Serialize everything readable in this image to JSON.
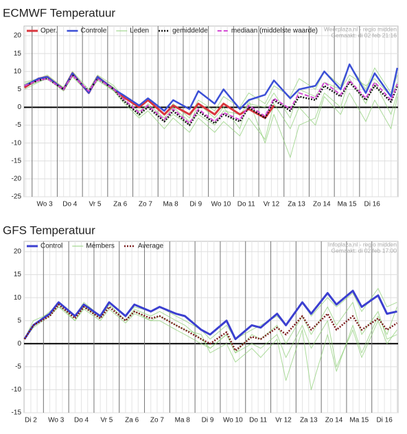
{
  "chart_data": [
    {
      "type": "line",
      "title": "ECMWF Temperatuur",
      "source": [
        "Weerplaza.nl - regio midden",
        "Gemaakt: di 02 feb 21:16"
      ],
      "xlim": [
        0.68,
        15.53
      ],
      "xticks": [
        {
          "value": 1.5,
          "label": "Wo 3"
        },
        {
          "value": 2.5,
          "label": "Do 4"
        },
        {
          "value": 3.5,
          "label": "Vr 5"
        },
        {
          "value": 4.5,
          "label": "Za 6"
        },
        {
          "value": 5.5,
          "label": "Zo 7"
        },
        {
          "value": 6.5,
          "label": "Ma 8"
        },
        {
          "value": 7.5,
          "label": "Di 9"
        },
        {
          "value": 8.5,
          "label": "Wo 10"
        },
        {
          "value": 9.5,
          "label": "Do 11"
        },
        {
          "value": 10.5,
          "label": "Vr 12"
        },
        {
          "value": 11.5,
          "label": "Za 13"
        },
        {
          "value": 12.5,
          "label": "Zo 14"
        },
        {
          "value": 13.5,
          "label": "Ma 15"
        },
        {
          "value": 14.5,
          "label": "Di 16"
        }
      ],
      "ylim": [
        -25,
        20
      ],
      "yticks": [
        20,
        15,
        10,
        5,
        0,
        -5,
        -10,
        -15,
        -20,
        -25
      ],
      "grid": true,
      "x": [
        0.7,
        1.25,
        1.6,
        2.25,
        2.6,
        3.25,
        3.6,
        4.25,
        4.6,
        5.25,
        5.6,
        6.25,
        6.6,
        7.25,
        7.6,
        8.25,
        8.6,
        9.25,
        9.6,
        10.25,
        10.6,
        11.25,
        11.6,
        12.25,
        12.6,
        13.25,
        13.6,
        14.25,
        14.6,
        15.25,
        15.5
      ],
      "series": [
        {
          "name": "Oper.",
          "color": "#d9363e",
          "style": "solid",
          "width": 3,
          "values": [
            5.5,
            8,
            8.5,
            5,
            9.5,
            4,
            8.5,
            5,
            3,
            0,
            2,
            -2,
            0.5,
            -2,
            1,
            -2,
            1,
            -2,
            -0.5,
            -3,
            0.5,
            null,
            null,
            null,
            null,
            null,
            null,
            null,
            null,
            null,
            null
          ]
        },
        {
          "name": "Controle",
          "color": "#3b4fd6",
          "style": "solid",
          "width": 2.5,
          "values": [
            6,
            8,
            8.5,
            5,
            9.5,
            4,
            8.5,
            5,
            3.5,
            0.5,
            2.5,
            -1,
            2,
            -0.5,
            4.5,
            1,
            5,
            -0.5,
            2,
            3.5,
            7.5,
            2.5,
            5,
            6,
            10,
            5,
            12,
            4,
            9.5,
            3,
            11
          ]
        },
        {
          "name": "Leden",
          "color": "#8fcf78",
          "style": "solid",
          "width": 1,
          "members": [
            [
              5,
              7,
              8,
              4.5,
              8.5,
              4,
              8,
              4.5,
              1.5,
              -3,
              -1,
              -6,
              -3,
              -7,
              -3,
              -7,
              -4,
              -8,
              -3,
              -9,
              1,
              -6,
              0,
              -5,
              3,
              -2,
              4,
              -4,
              2,
              -6,
              3
            ],
            [
              6.5,
              8,
              9,
              5.5,
              10,
              5,
              9,
              6,
              3,
              0,
              2,
              -2,
              1,
              -3,
              2,
              -1,
              3,
              0,
              4,
              1,
              6,
              3,
              8,
              5,
              10,
              6,
              12,
              5,
              11,
              4,
              9
            ],
            [
              6,
              7,
              8.5,
              5,
              9,
              4.5,
              8.5,
              5.5,
              2,
              -1,
              0.5,
              -4,
              -2,
              -5,
              1,
              -3,
              0,
              -6,
              2,
              -10,
              -2,
              -14,
              -5,
              -3,
              4,
              0,
              8,
              1,
              7,
              -2,
              4
            ],
            [
              7,
              8,
              8,
              5.5,
              9.5,
              4,
              7.5,
              4.5,
              2.5,
              -2.5,
              1,
              -3,
              0,
              -4,
              -2,
              -5,
              -1,
              -2,
              1,
              0,
              4,
              -3,
              5,
              3,
              7,
              5,
              9,
              6,
              8,
              3,
              7
            ]
          ]
        },
        {
          "name": "gemiddelde",
          "color": "#111111",
          "style": "dotted",
          "width": 2.5,
          "values": [
            6,
            7.5,
            8,
            5,
            9,
            4.5,
            8,
            5,
            2,
            -2,
            0,
            -4,
            -1,
            -5,
            -1,
            -4.5,
            -2,
            -4,
            0,
            -3,
            2,
            -1,
            3,
            2,
            6,
            3,
            7,
            2,
            6,
            1.5,
            6
          ]
        },
        {
          "name": "mediaan (middelste waarde)",
          "color": "#d44bd4",
          "style": "dashed",
          "width": 2,
          "values": [
            6,
            7.5,
            8,
            5,
            9,
            4.5,
            8,
            5,
            2.5,
            -1.5,
            0.5,
            -3.5,
            -0.5,
            -4.5,
            -0.5,
            -4,
            -1.5,
            -3.5,
            0.5,
            -2.5,
            2.5,
            -0.5,
            4,
            2.5,
            7,
            3.5,
            7.5,
            2.5,
            7,
            2,
            6.5
          ]
        }
      ]
    },
    {
      "type": "line",
      "title": "GFS Temperatuur",
      "source": [
        "Infoplaza.nl - regio midden",
        "Gemaakt: di 02 feb 17:00"
      ],
      "xlim": [
        0.23,
        15.04
      ],
      "xticks": [
        {
          "value": 0.5,
          "label": "Di 2"
        },
        {
          "value": 1.5,
          "label": "Wo 3"
        },
        {
          "value": 2.5,
          "label": "Do 4"
        },
        {
          "value": 3.5,
          "label": "Vr 5"
        },
        {
          "value": 4.5,
          "label": "Za 6"
        },
        {
          "value": 5.5,
          "label": "Zo 7"
        },
        {
          "value": 6.5,
          "label": "Ma 8"
        },
        {
          "value": 7.5,
          "label": "Di 9"
        },
        {
          "value": 8.5,
          "label": "Wo 10"
        },
        {
          "value": 9.5,
          "label": "Do 11"
        },
        {
          "value": 10.5,
          "label": "Vr 12"
        },
        {
          "value": 11.5,
          "label": "Za 13"
        },
        {
          "value": 12.5,
          "label": "Zo 14"
        },
        {
          "value": 13.5,
          "label": "Ma 15"
        },
        {
          "value": 14.5,
          "label": "Di 16"
        }
      ],
      "ylim": [
        -15,
        20
      ],
      "yticks": [
        20,
        15,
        10,
        5,
        0,
        -5,
        -10,
        -15
      ],
      "grid": true,
      "x": [
        0.25,
        0.6,
        1.25,
        1.6,
        2.25,
        2.6,
        3.25,
        3.6,
        4.25,
        4.6,
        5.25,
        5.6,
        6.25,
        6.6,
        7.25,
        7.6,
        8.25,
        8.6,
        9.25,
        9.6,
        10.25,
        10.6,
        11.25,
        11.6,
        12.25,
        12.6,
        13.25,
        13.6,
        14.25,
        14.6,
        15.0
      ],
      "series": [
        {
          "name": "Control",
          "color": "#3b3fd0",
          "style": "solid",
          "width": 3,
          "values": [
            1,
            4,
            6.5,
            9,
            6,
            8.5,
            6,
            9,
            6,
            8.5,
            7,
            8,
            6.5,
            6,
            3,
            2,
            5,
            1,
            4,
            3.5,
            6.5,
            4,
            9,
            6.5,
            11,
            8.5,
            11.5,
            8,
            10.5,
            6.5,
            7
          ]
        },
        {
          "name": "Members",
          "color": "#8fcf78",
          "style": "solid",
          "width": 1,
          "members": [
            [
              1,
              4,
              7,
              8.5,
              5,
              8,
              6,
              8.5,
              5,
              7.5,
              6,
              7,
              5,
              4,
              1,
              -1,
              2,
              -2,
              0,
              -1,
              2,
              -3,
              4,
              -1,
              5,
              -5,
              3,
              -3,
              5,
              0,
              3
            ],
            [
              1,
              5,
              6.5,
              9,
              6,
              9,
              6,
              9,
              6,
              8,
              7,
              8,
              6,
              5,
              3,
              1,
              4,
              1,
              3,
              4,
              6,
              4,
              9,
              6,
              10,
              8,
              11,
              7,
              12,
              8,
              9
            ],
            [
              1,
              3.5,
              6,
              8,
              5,
              7.5,
              5,
              7.5,
              4.5,
              6.5,
              5,
              5,
              3,
              2,
              0,
              -1,
              2,
              -2,
              2,
              1,
              4,
              0,
              6,
              2,
              8,
              4,
              9,
              2,
              7,
              1,
              2
            ],
            [
              1,
              4,
              6.5,
              8,
              6,
              8,
              5.5,
              8.5,
              5,
              7,
              5,
              6,
              4,
              3,
              2,
              -2,
              0,
              -4,
              -1,
              -3,
              1,
              -8,
              3,
              -10,
              2,
              -6,
              4,
              -2,
              6,
              2,
              8
            ]
          ]
        },
        {
          "name": "Average",
          "color": "#7a1a1a",
          "style": "dotted",
          "width": 2.5,
          "values": [
            1,
            4,
            6,
            8.5,
            5.5,
            8,
            5.5,
            8,
            5,
            7,
            5.5,
            6,
            4,
            3,
            1,
            0,
            2.5,
            -1.5,
            1.5,
            1,
            3.5,
            2,
            6,
            3,
            6.5,
            3,
            6,
            3,
            5.5,
            3,
            4.5
          ]
        }
      ]
    }
  ]
}
